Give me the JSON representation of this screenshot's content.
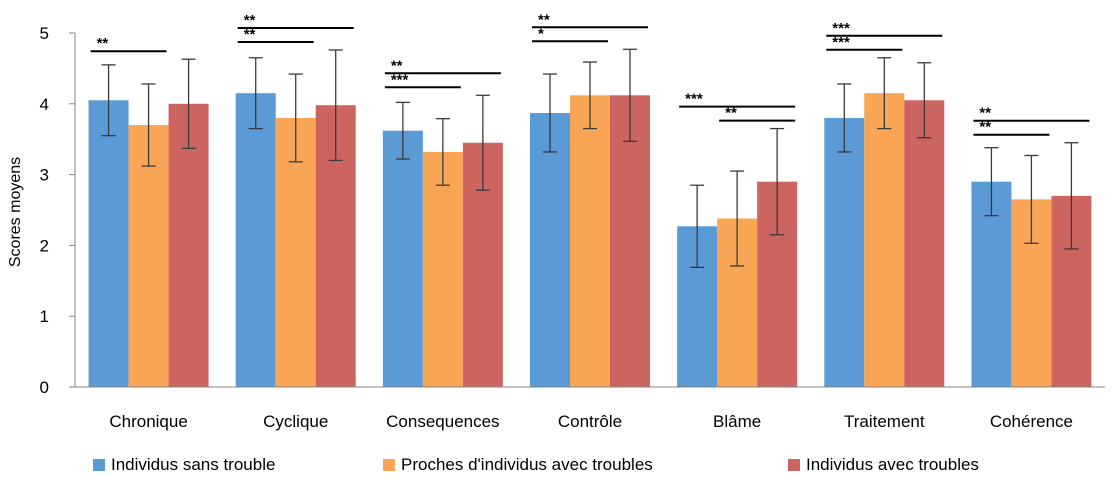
{
  "chart_data": {
    "type": "bar",
    "ylabel": "Scores moyens",
    "ylim": [
      0,
      5
    ],
    "yticks": [
      "0",
      "1",
      "2",
      "3",
      "4",
      "5"
    ],
    "grid": false,
    "legend_position": "bottom",
    "categories": [
      "Chronique",
      "Cyclique",
      "Consequences",
      "Contrôle",
      "Blâme",
      "Traitement",
      "Cohérence"
    ],
    "series": [
      {
        "name": "Individus sans trouble",
        "color": "#5b9bd5",
        "values": [
          4.05,
          4.15,
          3.62,
          3.87,
          2.27,
          3.8,
          2.9
        ],
        "errors": [
          0.5,
          0.5,
          0.4,
          0.55,
          0.58,
          0.48,
          0.48
        ]
      },
      {
        "name": "Proches d'individus avec troubles",
        "color": "#f8a556",
        "values": [
          3.7,
          3.8,
          3.32,
          4.12,
          2.38,
          4.15,
          2.65
        ],
        "errors": [
          0.58,
          0.62,
          0.47,
          0.47,
          0.67,
          0.5,
          0.62
        ]
      },
      {
        "name": "Individus avec troubles",
        "color": "#cc6560",
        "values": [
          4.0,
          3.98,
          3.45,
          4.12,
          2.9,
          4.05,
          2.7
        ],
        "errors": [
          0.63,
          0.78,
          0.67,
          0.65,
          0.75,
          0.53,
          0.75
        ]
      }
    ],
    "annotations": [
      {
        "category": 0,
        "from": 0,
        "to": 1,
        "level": 1,
        "label": "**"
      },
      {
        "category": 1,
        "from": 0,
        "to": 1,
        "level": 1,
        "label": "**"
      },
      {
        "category": 1,
        "from": 0,
        "to": 2,
        "level": 2,
        "label": "**"
      },
      {
        "category": 2,
        "from": 0,
        "to": 1,
        "level": 1,
        "label": "***"
      },
      {
        "category": 2,
        "from": 0,
        "to": 2,
        "level": 2,
        "label": "**"
      },
      {
        "category": 3,
        "from": 0,
        "to": 1,
        "level": 1,
        "label": "*"
      },
      {
        "category": 3,
        "from": 0,
        "to": 2,
        "level": 2,
        "label": "**"
      },
      {
        "category": 4,
        "from": 1,
        "to": 2,
        "level": 1,
        "label": "**"
      },
      {
        "category": 4,
        "from": 0,
        "to": 2,
        "level": 2,
        "label": "***"
      },
      {
        "category": 5,
        "from": 0,
        "to": 1,
        "level": 1,
        "label": "***"
      },
      {
        "category": 5,
        "from": 0,
        "to": 2,
        "level": 2,
        "label": "***"
      },
      {
        "category": 6,
        "from": 0,
        "to": 1,
        "level": 1,
        "label": "**"
      },
      {
        "category": 6,
        "from": 0,
        "to": 2,
        "level": 2,
        "label": "**"
      }
    ]
  }
}
